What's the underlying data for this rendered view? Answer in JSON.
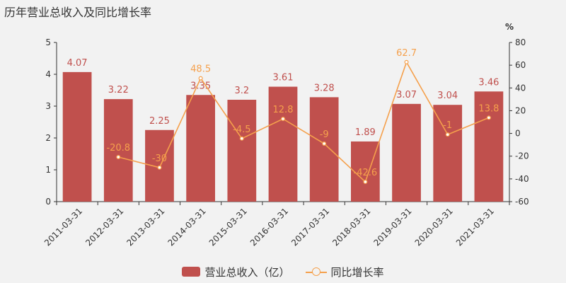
{
  "title": "历年营业总收入及同比增长率",
  "chart_data": {
    "type": "bar",
    "categories": [
      "2011-03-31",
      "2012-03-31",
      "2013-03-31",
      "2014-03-31",
      "2015-03-31",
      "2016-03-31",
      "2017-03-31",
      "2018-03-31",
      "2019-03-31",
      "2020-03-31",
      "2021-03-31"
    ],
    "series": [
      {
        "name": "营业总收入（亿）",
        "type": "bar",
        "axis": "left",
        "color": "#c0504d",
        "values": [
          4.07,
          3.22,
          2.25,
          3.35,
          3.2,
          3.61,
          3.28,
          1.89,
          3.07,
          3.04,
          3.46
        ]
      },
      {
        "name": "同比增长率",
        "type": "line",
        "axis": "right",
        "color": "#f5a04c",
        "values": [
          null,
          -20.8,
          -30,
          48.5,
          -4.5,
          12.8,
          -9,
          -42.6,
          62.7,
          -1,
          13.8
        ]
      }
    ],
    "y_left": {
      "min": 0,
      "max": 5,
      "ticks": [
        0,
        1,
        2,
        3,
        4,
        5
      ]
    },
    "y_right": {
      "min": -60,
      "max": 80,
      "ticks": [
        -60,
        -40,
        -20,
        0,
        20,
        40,
        60,
        80
      ],
      "unit": "%"
    },
    "legend_position": "bottom",
    "grid": false
  }
}
